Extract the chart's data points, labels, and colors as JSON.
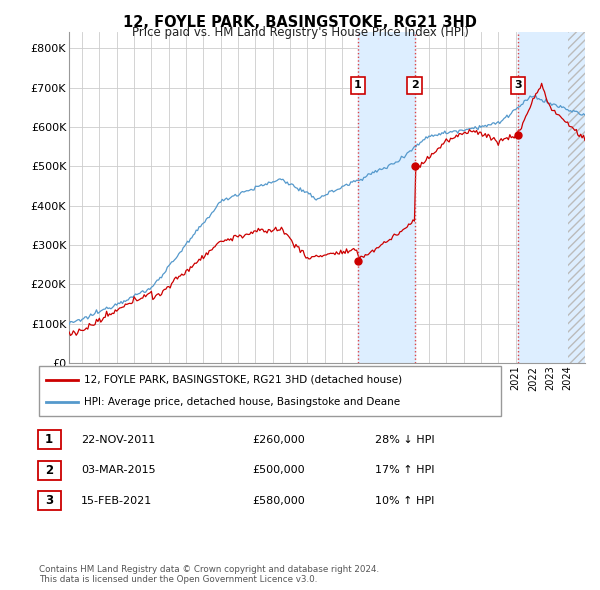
{
  "title": "12, FOYLE PARK, BASINGSTOKE, RG21 3HD",
  "subtitle": "Price paid vs. HM Land Registry's House Price Index (HPI)",
  "ytick_values": [
    0,
    100000,
    200000,
    300000,
    400000,
    500000,
    600000,
    700000,
    800000
  ],
  "ylim": [
    0,
    840000
  ],
  "xlim_start": 1995.25,
  "xlim_end": 2025.0,
  "transactions": [
    {
      "label": "1",
      "date_num": 2011.9,
      "price": 260000,
      "text": "22-NOV-2011",
      "amount": "£260,000",
      "pct": "28% ↓ HPI"
    },
    {
      "label": "2",
      "date_num": 2015.17,
      "price": 500000,
      "text": "03-MAR-2015",
      "amount": "£500,000",
      "pct": "17% ↑ HPI"
    },
    {
      "label": "3",
      "date_num": 2021.12,
      "price": 580000,
      "text": "15-FEB-2021",
      "amount": "£580,000",
      "pct": "10% ↑ HPI"
    }
  ],
  "vline_color": "#dd4444",
  "sold_line_color": "#cc0000",
  "hpi_line_color": "#5599cc",
  "shade_color": "#ddeeff",
  "hatch_color": "#cccccc",
  "background_color": "#ffffff",
  "grid_color": "#cccccc",
  "legend_label_sold": "12, FOYLE PARK, BASINGSTOKE, RG21 3HD (detached house)",
  "legend_label_hpi": "HPI: Average price, detached house, Basingstoke and Deane",
  "footer1": "Contains HM Land Registry data © Crown copyright and database right 2024.",
  "footer2": "This data is licensed under the Open Government Licence v3.0.",
  "label_box_color": "#cc0000"
}
